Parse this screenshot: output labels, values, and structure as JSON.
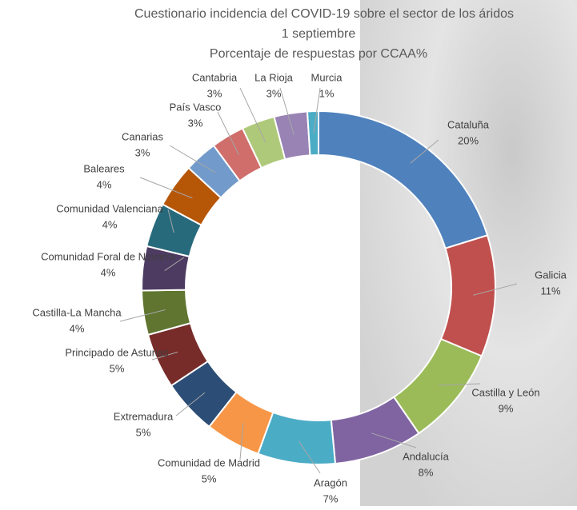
{
  "chart_data": {
    "type": "donut",
    "title_lines": [
      "Cuestionario incidencia del COVID-19 sobre el sector de los áridos",
      "1 septiembre",
      "Porcentaje de respuestas por CCAA%"
    ],
    "categories": [
      "Cataluña",
      "Galicia",
      "Castilla y León",
      "Andalucía",
      "Aragón",
      "Comunidad de Madrid",
      "Extremadura",
      "Principado de Asturias",
      "Castilla-La Mancha",
      "Comunidad Foral de Navarra",
      "Comunidad Valenciana",
      "Baleares",
      "Canarias",
      "País Vasco",
      "Cantabria",
      "La Rioja",
      "Murcia"
    ],
    "values": [
      20,
      11,
      9,
      8,
      7,
      5,
      5,
      5,
      4,
      4,
      4,
      4,
      3,
      3,
      3,
      3,
      1
    ],
    "value_labels": [
      "20%",
      "11%",
      "9%",
      "8%",
      "7%",
      "5%",
      "5%",
      "5%",
      "4%",
      "4%",
      "4%",
      "4%",
      "3%",
      "3%",
      "3%",
      "3%",
      "1%"
    ],
    "colors": [
      "#4f81bd",
      "#c0504d",
      "#9bbb59",
      "#8064a2",
      "#4bacc6",
      "#f79646",
      "#2c4d75",
      "#772c2a",
      "#5f7530",
      "#4d3b62",
      "#276a7c",
      "#b65708",
      "#729aca",
      "#d06e6b",
      "#afc97a",
      "#9983b5",
      "#4bacc6"
    ]
  }
}
